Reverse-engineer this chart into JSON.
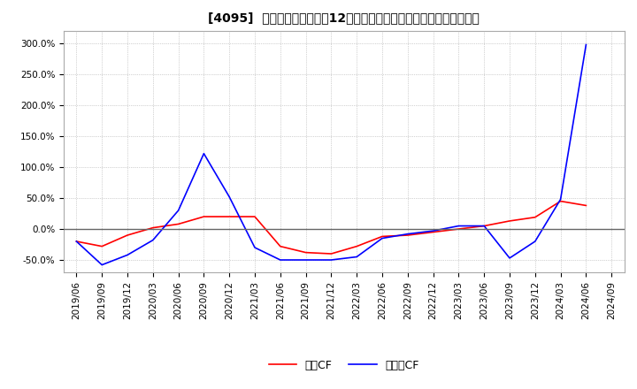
{
  "title": "[4095]  キャッシュフローの12か月移動合計の対前年同期増減率の推移",
  "legend_labels": [
    "営業CF",
    "フリーCF"
  ],
  "line_colors": [
    "#ff0000",
    "#0000ff"
  ],
  "ylim": [
    -0.7,
    3.2
  ],
  "yticks": [
    -0.5,
    0.0,
    0.5,
    1.0,
    1.5,
    2.0,
    2.5,
    3.0
  ],
  "ytick_labels": [
    "-50.0%",
    "0.0%",
    "50.0%",
    "100.0%",
    "150.0%",
    "200.0%",
    "250.0%",
    "300.0%"
  ],
  "x_dates": [
    "2019/06",
    "2019/09",
    "2019/12",
    "2020/03",
    "2020/06",
    "2020/09",
    "2020/12",
    "2021/03",
    "2021/06",
    "2021/09",
    "2021/12",
    "2022/03",
    "2022/06",
    "2022/09",
    "2022/12",
    "2023/03",
    "2023/06",
    "2023/09",
    "2023/12",
    "2024/03",
    "2024/06",
    "2024/09"
  ],
  "operating_cf": [
    -0.2,
    -0.28,
    -0.1,
    0.02,
    0.08,
    0.2,
    0.2,
    0.2,
    -0.28,
    -0.38,
    -0.4,
    -0.28,
    -0.12,
    -0.1,
    -0.05,
    0.0,
    0.05,
    0.13,
    0.19,
    0.45,
    0.38,
    null
  ],
  "free_cf": [
    -0.2,
    -0.58,
    -0.42,
    -0.18,
    0.3,
    1.22,
    0.52,
    -0.3,
    -0.5,
    -0.5,
    -0.5,
    -0.45,
    -0.15,
    -0.08,
    -0.03,
    0.05,
    0.05,
    -0.47,
    -0.2,
    0.48,
    2.98,
    null
  ],
  "background_color": "#ffffff",
  "grid_color": "#aaaaaa",
  "title_fontsize": 10,
  "tick_fontsize": 7.5
}
